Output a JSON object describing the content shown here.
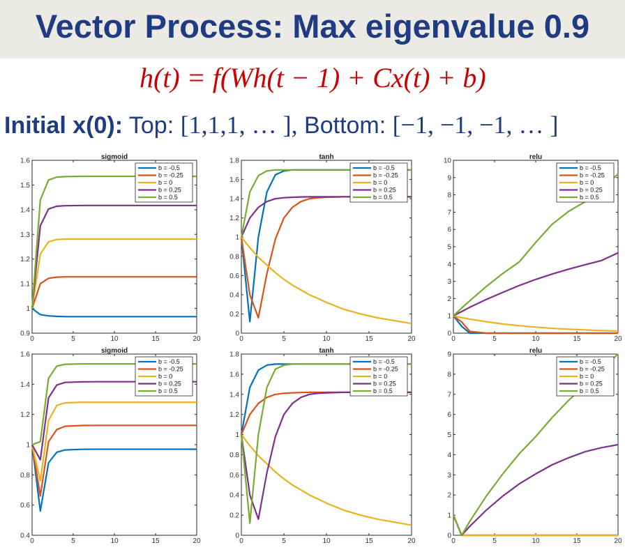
{
  "slide": {
    "title": "Vector Process: Max eigenvalue 0.9",
    "equation": "h(t) = f(Wh(t − 1) + Cx(t) + b)",
    "initial_label": "Initial x(0):",
    "initial_top_label": "Top:",
    "initial_top_value": "[1,1,1, … ],",
    "initial_bottom_label": "Bottom:",
    "initial_bottom_value": "[−1, −1, −1, … ]"
  },
  "colors": {
    "title": "#1f3b82",
    "equation": "#cc0000",
    "series": [
      "#0072bd",
      "#d95319",
      "#edb120",
      "#7e2f8e",
      "#77ac30"
    ]
  },
  "chart_data": [
    {
      "type": "line",
      "title": "sigmoid",
      "xlim": [
        0,
        20
      ],
      "ylim": [
        0.9,
        1.6
      ],
      "xticks": [
        0,
        5,
        10,
        15,
        20
      ],
      "yticks": [
        0.9,
        1,
        1.1,
        1.2,
        1.3,
        1.4,
        1.5,
        1.6
      ],
      "legend": [
        "b = -0.5",
        "b = -0.25",
        "b = 0",
        "b = 0.25",
        "b = 0.5"
      ],
      "legend_loc": "top-right",
      "x": [
        0,
        1,
        2,
        3,
        4,
        6,
        8,
        20
      ],
      "series": [
        {
          "name": "b = -0.5",
          "values": [
            1.0,
            0.975,
            0.97,
            0.968,
            0.967,
            0.967,
            0.967,
            0.967
          ]
        },
        {
          "name": "b = -0.25",
          "values": [
            1.0,
            1.1,
            1.122,
            1.127,
            1.128,
            1.128,
            1.128,
            1.128
          ]
        },
        {
          "name": "b = 0",
          "values": [
            1.0,
            1.22,
            1.27,
            1.279,
            1.281,
            1.281,
            1.281,
            1.281
          ]
        },
        {
          "name": "b = 0.25",
          "values": [
            1.0,
            1.335,
            1.403,
            1.414,
            1.416,
            1.417,
            1.417,
            1.417
          ]
        },
        {
          "name": "b = 0.5",
          "values": [
            1.0,
            1.44,
            1.52,
            1.532,
            1.534,
            1.535,
            1.535,
            1.535
          ]
        }
      ]
    },
    {
      "type": "line",
      "title": "tanh",
      "xlim": [
        0,
        20
      ],
      "ylim": [
        0,
        1.8
      ],
      "xticks": [
        0,
        5,
        10,
        15,
        20
      ],
      "yticks": [
        0,
        0.2,
        0.4,
        0.6,
        0.8,
        1,
        1.2,
        1.4,
        1.6,
        1.8
      ],
      "legend": [
        "b = -0.5",
        "b = -0.25",
        "b = 0",
        "b = 0.25",
        "b = 0.5"
      ],
      "legend_loc": "top-right",
      "x": [
        0,
        1,
        2,
        3,
        4,
        5,
        6,
        7,
        8,
        9,
        10,
        12,
        14,
        16,
        18,
        20
      ],
      "series": [
        {
          "name": "b = -0.5",
          "values": [
            1.0,
            0.12,
            1.0,
            1.47,
            1.65,
            1.69,
            1.7,
            1.7,
            1.7,
            1.7,
            1.7,
            1.7,
            1.7,
            1.7,
            1.7,
            1.7
          ]
        },
        {
          "name": "b = -0.25",
          "values": [
            1.0,
            0.4,
            0.16,
            0.62,
            0.98,
            1.2,
            1.31,
            1.37,
            1.4,
            1.41,
            1.415,
            1.42,
            1.42,
            1.42,
            1.42,
            1.42
          ]
        },
        {
          "name": "b = 0",
          "values": [
            1.0,
            0.89,
            0.79,
            0.71,
            0.63,
            0.56,
            0.5,
            0.45,
            0.4,
            0.36,
            0.32,
            0.25,
            0.2,
            0.16,
            0.13,
            0.1
          ]
        },
        {
          "name": "b = 0.25",
          "values": [
            1.0,
            1.2,
            1.31,
            1.37,
            1.4,
            1.41,
            1.415,
            1.418,
            1.42,
            1.42,
            1.42,
            1.42,
            1.42,
            1.42,
            1.42,
            1.42
          ]
        },
        {
          "name": "b = 0.5",
          "values": [
            1.0,
            1.47,
            1.64,
            1.69,
            1.7,
            1.7,
            1.7,
            1.7,
            1.7,
            1.7,
            1.7,
            1.7,
            1.7,
            1.7,
            1.7,
            1.7
          ]
        }
      ]
    },
    {
      "type": "line",
      "title": "relu",
      "xlim": [
        0,
        20
      ],
      "ylim": [
        0,
        10
      ],
      "xticks": [
        0,
        5,
        10,
        15,
        20
      ],
      "yticks": [
        0,
        1,
        2,
        3,
        4,
        5,
        6,
        7,
        8,
        9,
        10
      ],
      "legend": [
        "b = -0.5",
        "b = -0.25",
        "b = 0",
        "b = 0.25",
        "b = 0.5"
      ],
      "legend_loc": "top-right",
      "x": [
        0,
        1,
        2,
        4,
        6,
        8,
        10,
        12,
        14,
        16,
        18,
        20
      ],
      "series": [
        {
          "name": "b = -0.5",
          "values": [
            1.0,
            0.4,
            0,
            0,
            0,
            0,
            0,
            0,
            0,
            0,
            0,
            0
          ]
        },
        {
          "name": "b = -0.25",
          "values": [
            1.0,
            0.65,
            0.1,
            0,
            0,
            0,
            0,
            0,
            0,
            0,
            0,
            0
          ]
        },
        {
          "name": "b = 0",
          "values": [
            1.0,
            0.9,
            0.81,
            0.66,
            0.53,
            0.43,
            0.35,
            0.28,
            0.23,
            0.19,
            0.15,
            0.12
          ]
        },
        {
          "name": "b = 0.25",
          "values": [
            1.0,
            1.25,
            1.5,
            1.95,
            2.36,
            2.76,
            3.11,
            3.42,
            3.7,
            3.96,
            4.2,
            4.65
          ]
        },
        {
          "name": "b = 0.5",
          "values": [
            1.0,
            1.45,
            1.88,
            2.7,
            3.45,
            4.12,
            5.25,
            6.3,
            7.05,
            7.6,
            8.4,
            9.2
          ]
        }
      ]
    },
    {
      "type": "line",
      "title": "sigmoid",
      "xlim": [
        0,
        20
      ],
      "ylim": [
        0.4,
        1.6
      ],
      "xticks": [
        0,
        5,
        10,
        15,
        20
      ],
      "yticks": [
        0.4,
        0.6,
        0.8,
        1,
        1.2,
        1.4,
        1.6
      ],
      "legend": [
        "b = -0.5",
        "b = -0.25",
        "b = 0",
        "b = 0.25",
        "b = 0.5"
      ],
      "legend_loc": "top-right",
      "x": [
        0,
        1,
        2,
        3,
        4,
        6,
        8,
        20
      ],
      "series": [
        {
          "name": "b = -0.5",
          "values": [
            1.0,
            0.56,
            0.88,
            0.95,
            0.965,
            0.969,
            0.97,
            0.97
          ]
        },
        {
          "name": "b = -0.25",
          "values": [
            1.0,
            0.66,
            1.02,
            1.1,
            1.122,
            1.127,
            1.128,
            1.128
          ]
        },
        {
          "name": "b = 0",
          "values": [
            1.0,
            0.76,
            1.16,
            1.26,
            1.277,
            1.281,
            1.281,
            1.281
          ]
        },
        {
          "name": "b = 0.25",
          "values": [
            1.0,
            0.9,
            1.31,
            1.395,
            1.412,
            1.416,
            1.417,
            1.417
          ]
        },
        {
          "name": "b = 0.5",
          "values": [
            1.0,
            1.02,
            1.44,
            1.52,
            1.532,
            1.535,
            1.535,
            1.535
          ]
        }
      ]
    },
    {
      "type": "line",
      "title": "tanh",
      "xlim": [
        0,
        20
      ],
      "ylim": [
        0,
        1.8
      ],
      "xticks": [
        0,
        5,
        10,
        15,
        20
      ],
      "yticks": [
        0,
        0.2,
        0.4,
        0.6,
        0.8,
        1,
        1.2,
        1.4,
        1.6,
        1.8
      ],
      "legend": [
        "b = -0.5",
        "b = -0.25",
        "b = 0",
        "b = 0.25",
        "b = 0.5"
      ],
      "legend_loc": "top-right",
      "x": [
        0,
        1,
        2,
        3,
        4,
        5,
        6,
        7,
        8,
        9,
        10,
        12,
        14,
        16,
        18,
        20
      ],
      "series": [
        {
          "name": "b = -0.5",
          "values": [
            1.0,
            1.47,
            1.64,
            1.69,
            1.7,
            1.7,
            1.7,
            1.7,
            1.7,
            1.7,
            1.7,
            1.7,
            1.7,
            1.7,
            1.7,
            1.7
          ]
        },
        {
          "name": "b = -0.25",
          "values": [
            1.0,
            1.2,
            1.31,
            1.37,
            1.4,
            1.41,
            1.415,
            1.418,
            1.42,
            1.42,
            1.42,
            1.42,
            1.42,
            1.42,
            1.42,
            1.42
          ]
        },
        {
          "name": "b = 0",
          "values": [
            1.0,
            0.89,
            0.79,
            0.71,
            0.63,
            0.56,
            0.5,
            0.45,
            0.4,
            0.36,
            0.32,
            0.25,
            0.2,
            0.16,
            0.13,
            0.1
          ]
        },
        {
          "name": "b = 0.25",
          "values": [
            1.0,
            0.4,
            0.16,
            0.62,
            0.98,
            1.2,
            1.31,
            1.37,
            1.4,
            1.41,
            1.415,
            1.42,
            1.42,
            1.42,
            1.42,
            1.42
          ]
        },
        {
          "name": "b = 0.5",
          "values": [
            1.0,
            0.12,
            1.0,
            1.47,
            1.65,
            1.69,
            1.7,
            1.7,
            1.7,
            1.7,
            1.7,
            1.7,
            1.7,
            1.7,
            1.7,
            1.7
          ]
        }
      ]
    },
    {
      "type": "line",
      "title": "relu",
      "xlim": [
        0,
        20
      ],
      "ylim": [
        0,
        9
      ],
      "xticks": [
        0,
        5,
        10,
        15,
        20
      ],
      "yticks": [
        0,
        1,
        2,
        3,
        4,
        5,
        6,
        7,
        8,
        9
      ],
      "legend": [
        "b = -0.5",
        "b = -0.25",
        "b = 0",
        "b = 0.25",
        "b = 0.5"
      ],
      "legend_loc": "top-right",
      "x": [
        0,
        1,
        2,
        4,
        6,
        8,
        10,
        12,
        14,
        16,
        18,
        20
      ],
      "series": [
        {
          "name": "b = -0.5",
          "values": [
            1.0,
            0,
            0,
            0,
            0,
            0,
            0,
            0,
            0,
            0,
            0,
            0
          ]
        },
        {
          "name": "b = -0.25",
          "values": [
            1.0,
            0,
            0,
            0,
            0,
            0,
            0,
            0,
            0,
            0,
            0,
            0
          ]
        },
        {
          "name": "b = 0",
          "values": [
            1.0,
            0,
            0,
            0,
            0,
            0,
            0,
            0,
            0,
            0,
            0,
            0
          ]
        },
        {
          "name": "b = 0.25",
          "values": [
            1.0,
            0,
            0.45,
            1.25,
            1.95,
            2.55,
            3.05,
            3.5,
            3.85,
            4.15,
            4.35,
            4.5
          ]
        },
        {
          "name": "b = 0.5",
          "values": [
            1.0,
            0,
            0.7,
            1.95,
            3.05,
            4.05,
            4.9,
            5.85,
            6.7,
            7.45,
            8.25,
            9.0
          ]
        }
      ]
    }
  ]
}
